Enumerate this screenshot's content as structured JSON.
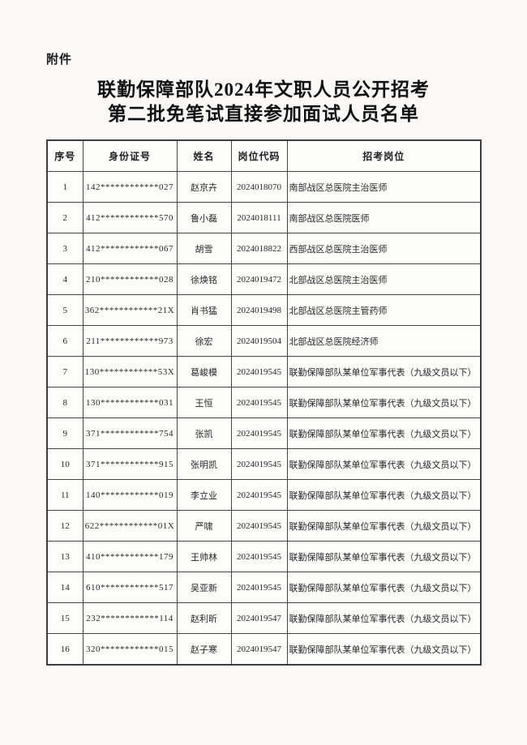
{
  "document": {
    "attachment_label": "附件",
    "title_line1": "联勤保障部队2024年文职人员公开招考",
    "title_line2": "第二批免笔试直接参加面试人员名单"
  },
  "table": {
    "headers": [
      "序号",
      "身份证号",
      "姓名",
      "岗位代码",
      "招考岗位"
    ],
    "rows": [
      {
        "index": "1",
        "id_number": "142************027",
        "name": "赵京卉",
        "job_code": "2024018070",
        "position": "南部战区总医院主治医师"
      },
      {
        "index": "2",
        "id_number": "412************570",
        "name": "鲁小磊",
        "job_code": "2024018111",
        "position": "南部战区总医院医师"
      },
      {
        "index": "3",
        "id_number": "412************067",
        "name": "胡雪",
        "job_code": "2024018822",
        "position": "西部战区总医院主治医师"
      },
      {
        "index": "4",
        "id_number": "210************028",
        "name": "徐焕铭",
        "job_code": "2024019472",
        "position": "北部战区总医院主治医师"
      },
      {
        "index": "5",
        "id_number": "362************21X",
        "name": "肖书猛",
        "job_code": "2024019498",
        "position": "北部战区总医院主管药师"
      },
      {
        "index": "6",
        "id_number": "211************973",
        "name": "徐宏",
        "job_code": "2024019504",
        "position": "北部战区总医院经济师"
      },
      {
        "index": "7",
        "id_number": "130************53X",
        "name": "葛峻模",
        "job_code": "2024019545",
        "position": "联勤保障部队某单位军事代表（九级文员以下）"
      },
      {
        "index": "8",
        "id_number": "130************031",
        "name": "王恒",
        "job_code": "2024019545",
        "position": "联勤保障部队某单位军事代表（九级文员以下）"
      },
      {
        "index": "9",
        "id_number": "371************754",
        "name": "张凯",
        "job_code": "2024019545",
        "position": "联勤保障部队某单位军事代表（九级文员以下）"
      },
      {
        "index": "10",
        "id_number": "371************915",
        "name": "张明凯",
        "job_code": "2024019545",
        "position": "联勤保障部队某单位军事代表（九级文员以下）"
      },
      {
        "index": "11",
        "id_number": "140************019",
        "name": "李立业",
        "job_code": "2024019545",
        "position": "联勤保障部队某单位军事代表（九级文员以下）"
      },
      {
        "index": "12",
        "id_number": "622************01X",
        "name": "严啸",
        "job_code": "2024019545",
        "position": "联勤保障部队某单位军事代表（九级文员以下）"
      },
      {
        "index": "13",
        "id_number": "410************179",
        "name": "王帅林",
        "job_code": "2024019545",
        "position": "联勤保障部队某单位军事代表（九级文员以下）"
      },
      {
        "index": "14",
        "id_number": "610************517",
        "name": "吴亚新",
        "job_code": "2024019545",
        "position": "联勤保障部队某单位军事代表（九级文员以下）"
      },
      {
        "index": "15",
        "id_number": "232************114",
        "name": "赵利昕",
        "job_code": "2024019547",
        "position": "联勤保障部队某单位军事代表（九级文员以下）"
      },
      {
        "index": "16",
        "id_number": "320************015",
        "name": "赵子寒",
        "job_code": "2024019547",
        "position": "联勤保障部队某单位军事代表（九级文员以下）"
      }
    ]
  }
}
